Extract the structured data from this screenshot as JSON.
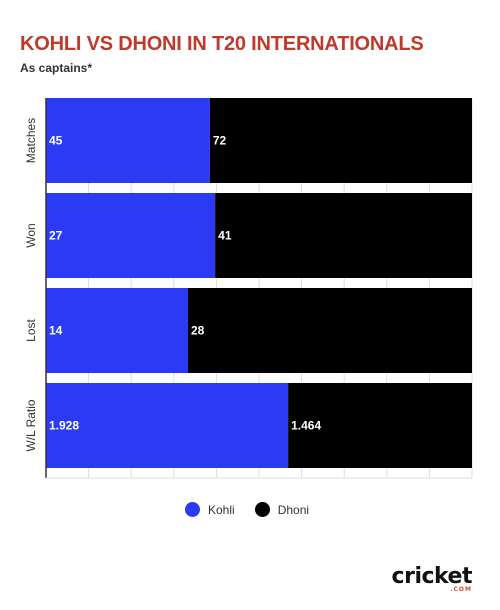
{
  "colors": {
    "kohli": "#2b3bf5",
    "dhoni": "#000000",
    "title": "#c0392b",
    "grid": "#dddddd"
  },
  "chart_data": {
    "type": "bar",
    "stacked": "percent",
    "orientation": "horizontal",
    "title": "KOHLI VS DHONI IN T20 INTERNATIONALS",
    "subtitle": "As captains*",
    "categories": [
      "Matches",
      "Won",
      "Lost",
      "W/L Ratio"
    ],
    "series": [
      {
        "name": "Kohli",
        "values": [
          45,
          27,
          14,
          1.928
        ],
        "labels": [
          "45",
          "27",
          "14",
          "1.928"
        ],
        "color": "#2b3bf5"
      },
      {
        "name": "Dhoni",
        "values": [
          72,
          41,
          28,
          1.464
        ],
        "labels": [
          "72",
          "41",
          "28",
          "1.464"
        ],
        "color": "#000000"
      }
    ],
    "legend": "bottom-center",
    "grid": true
  },
  "logo": {
    "main": "cricket",
    "sub": ".COM"
  }
}
